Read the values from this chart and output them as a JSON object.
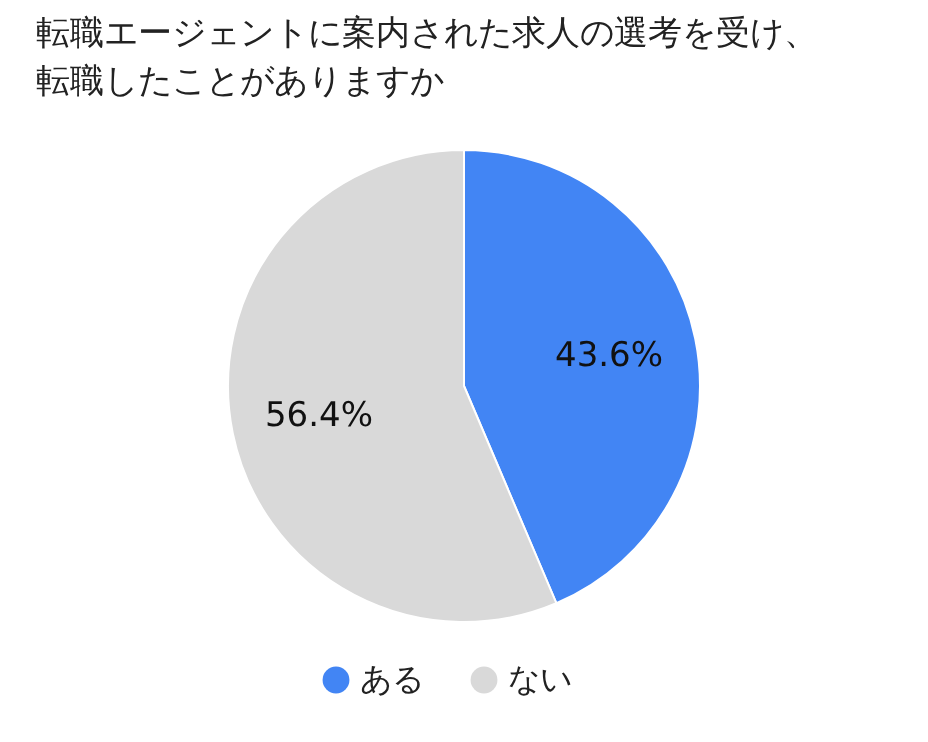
{
  "chart_data": {
    "type": "pie",
    "title": "転職エージェントに案内された求人の選考を受け、転職したことがありますか",
    "categories": [
      "ある",
      "ない"
    ],
    "values": [
      43.6,
      56.4
    ],
    "value_labels": [
      "43.6%",
      "56.4%"
    ],
    "colors": [
      "#4285f4",
      "#d9d9d9"
    ],
    "legend": "bottom"
  }
}
